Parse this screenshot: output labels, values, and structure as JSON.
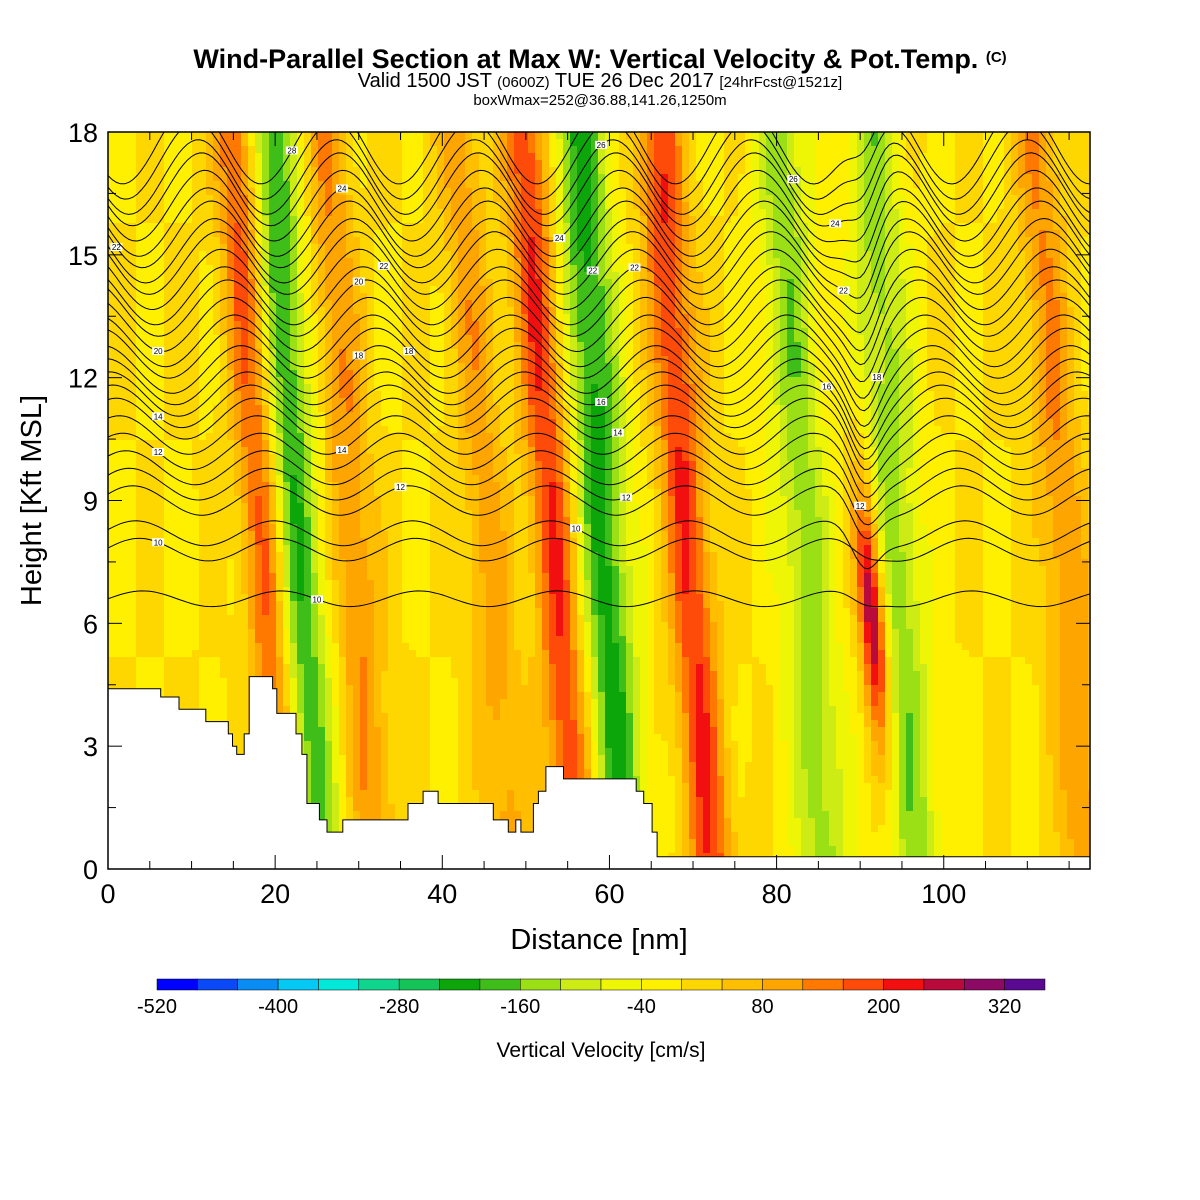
{
  "header": {
    "title_main": "Wind-Parallel Section at Max W: Vertical Velocity & Pot.Temp.",
    "title_mark": "(C)",
    "valid_a": "Valid 1500 JST",
    "valid_b": "(0600Z)",
    "valid_c": "TUE 26 Dec 2017",
    "valid_d": "[24hrFcst@1521z]",
    "box_info": "boxWmax=252@36.88,141.26,1250m"
  },
  "chart_data": {
    "type": "heatmap",
    "title": "Wind-Parallel Section at Max W: Vertical Velocity & Pot.Temp.",
    "xlabel": "Distance [nm]",
    "ylabel": "Height [Kft MSL]",
    "xlim": [
      0,
      117.5
    ],
    "ylim": [
      0,
      18
    ],
    "xticks": [
      0,
      20,
      40,
      60,
      80,
      100
    ],
    "yticks": [
      0,
      3,
      6,
      9,
      12,
      15,
      18
    ],
    "fill_variable": "vertical velocity",
    "contour_variable": "potential temperature",
    "colorbar": {
      "label": "Vertical Velocity [cm/s]",
      "tick_labels": [
        "-520",
        "-400",
        "-280",
        "-160",
        "-40",
        "80",
        "200",
        "320"
      ],
      "levels": [
        -520,
        -480,
        -440,
        -400,
        -360,
        -320,
        -280,
        -240,
        -200,
        -160,
        -120,
        -80,
        -40,
        0,
        40,
        80,
        120,
        160,
        200,
        240,
        280,
        320,
        360
      ],
      "colors": [
        "#0000ff",
        "#0a49f5",
        "#0a8cf5",
        "#05c8f5",
        "#00e8d8",
        "#0fd68c",
        "#14c459",
        "#0ca60a",
        "#3fbe1a",
        "#9be014",
        "#cdeb14",
        "#eef505",
        "#fff000",
        "#ffd700",
        "#ffbe00",
        "#ffa500",
        "#ff7800",
        "#ff4b0a",
        "#f20f0f",
        "#b90a3c",
        "#8c0a64",
        "#5a0a91"
      ]
    },
    "updrafts": [
      {
        "x": 18.5,
        "peak_cm_s": 200
      },
      {
        "x": 29,
        "peak_cm_s": 120
      },
      {
        "x": 45,
        "peak_cm_s": 100
      },
      {
        "x": 53,
        "peak_cm_s": 200
      },
      {
        "x": 69,
        "peak_cm_s": 200
      },
      {
        "x": 90.5,
        "peak_cm_s": 320
      },
      {
        "x": 114,
        "peak_cm_s": 120
      }
    ],
    "downdrafts": [
      {
        "x": 22,
        "peak_cm_s": -240
      },
      {
        "x": 59,
        "peak_cm_s": -240
      },
      {
        "x": 83,
        "peak_cm_s": -160
      },
      {
        "x": 94,
        "peak_cm_s": -160
      }
    ],
    "terrain": {
      "x": [
        0,
        6.3,
        6.3,
        8.5,
        8.5,
        11.7,
        11.7,
        14.4,
        14.4,
        14.9,
        14.9,
        15.4,
        15.4,
        16.3,
        16.3,
        16.9,
        16.9,
        19.7,
        19.7,
        20.2,
        20.2,
        22.5,
        22.5,
        23.2,
        23.2,
        23.8,
        23.8,
        25.3,
        25.3,
        26.2,
        26.2,
        28.1,
        28.1,
        35.9,
        35.9,
        37.7,
        37.7,
        39.5,
        39.5,
        46.1,
        46.1,
        47.9,
        47.9,
        48.8,
        48.8,
        49.4,
        49.4,
        50.9,
        50.9,
        51.5,
        51.5,
        52.4,
        52.4,
        54.5,
        54.5,
        63.2,
        63.2,
        64.1,
        64.1,
        65.1,
        65.1,
        65.7,
        65.7,
        117.5
      ],
      "height_kft": [
        4.4,
        4.4,
        4.2,
        4.2,
        3.9,
        3.9,
        3.6,
        3.6,
        3.3,
        3.3,
        3.0,
        3.0,
        2.8,
        2.8,
        3.3,
        3.3,
        4.7,
        4.7,
        4.4,
        4.4,
        3.8,
        3.8,
        3.3,
        3.3,
        2.8,
        2.8,
        1.6,
        1.6,
        1.2,
        1.2,
        0.9,
        0.9,
        1.2,
        1.2,
        1.6,
        1.6,
        1.9,
        1.9,
        1.6,
        1.6,
        1.2,
        1.2,
        0.9,
        0.9,
        1.2,
        1.2,
        0.9,
        0.9,
        1.6,
        1.6,
        1.9,
        1.9,
        2.5,
        2.5,
        2.2,
        2.2,
        1.9,
        1.9,
        1.6,
        1.6,
        0.9,
        0.9,
        0.3,
        0.3
      ]
    },
    "theta_contours": [
      {
        "label": "10",
        "base_kft": 6.6,
        "label_x": 25
      },
      {
        "label": "10",
        "base_kft": 7.8,
        "label_x": 6
      },
      {
        "label": "10",
        "base_kft": 8.2,
        "label_x": 56
      },
      {
        "label": "12",
        "base_kft": 9.0,
        "label_x": 35
      },
      {
        "label": "12",
        "base_kft": 9.4,
        "label_x": 62
      },
      {
        "label": "12",
        "base_kft": 9.8,
        "label_x": 90
      },
      {
        "label": "12",
        "base_kft": 10.2,
        "label_x": 6
      },
      {
        "label": "14",
        "base_kft": 10.6,
        "label_x": 28
      },
      {
        "label": "14",
        "base_kft": 11.0,
        "label_x": 61
      },
      {
        "label": "14",
        "base_kft": 11.3,
        "label_x": 6
      },
      {
        "label": "16",
        "base_kft": 11.6,
        "label_x": 86
      },
      {
        "label": "16",
        "base_kft": 11.9,
        "label_x": 59
      },
      {
        "label": "18",
        "base_kft": 12.2,
        "label_x": 30
      },
      {
        "label": "18",
        "base_kft": 12.6,
        "label_x": 36
      },
      {
        "label": "18",
        "base_kft": 12.9,
        "label_x": 92
      },
      {
        "label": "20",
        "base_kft": 13.3,
        "label_x": 6
      },
      {
        "label": "20",
        "base_kft": 13.7,
        "label_x": 30
      },
      {
        "label": "22",
        "base_kft": 14.0,
        "label_x": 63
      },
      {
        "label": "22",
        "base_kft": 14.4,
        "label_x": 33
      },
      {
        "label": "22",
        "base_kft": 14.8,
        "label_x": 58
      },
      {
        "label": "22",
        "base_kft": 15.1,
        "label_x": 88
      },
      {
        "label": "22",
        "base_kft": 15.5,
        "label_x": 1
      },
      {
        "label": "24",
        "base_kft": 15.8,
        "label_x": 28
      },
      {
        "label": "24",
        "base_kft": 16.2,
        "label_x": 54
      },
      {
        "label": "24",
        "base_kft": 16.6,
        "label_x": 87
      },
      {
        "label": "26",
        "base_kft": 16.9,
        "label_x": 59
      },
      {
        "label": "26",
        "base_kft": 17.3,
        "label_x": 82
      },
      {
        "label": "28",
        "base_kft": 17.7,
        "label_x": 22
      }
    ]
  }
}
